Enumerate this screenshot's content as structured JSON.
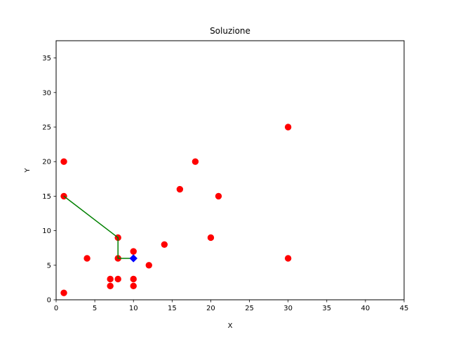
{
  "chart_data": {
    "type": "scatter",
    "title": "Soluzione",
    "xlabel": "X",
    "ylabel": "Y",
    "xlim": [
      0,
      45
    ],
    "ylim": [
      0,
      37.5
    ],
    "xticks": [
      0,
      5,
      10,
      15,
      20,
      25,
      30,
      35,
      40,
      45
    ],
    "yticks": [
      0,
      5,
      10,
      15,
      20,
      25,
      30,
      35
    ],
    "grid": false,
    "colors": {
      "points": "#ff0000",
      "path": "#008000",
      "start": "#0000ff",
      "axes": "#000000"
    },
    "series": [
      {
        "name": "points",
        "kind": "scatter",
        "marker": "circle",
        "x": [
          1,
          1,
          1,
          4,
          7,
          7,
          8,
          8,
          8,
          10,
          10,
          10,
          12,
          14,
          16,
          18,
          20,
          21,
          30,
          30
        ],
        "y": [
          20,
          15,
          1,
          6,
          3,
          2,
          9,
          6,
          3,
          7,
          3,
          2,
          5,
          8,
          16,
          20,
          9,
          15,
          25,
          6
        ]
      },
      {
        "name": "path",
        "kind": "line",
        "x": [
          10,
          8,
          8,
          1
        ],
        "y": [
          6,
          6,
          9,
          15
        ]
      },
      {
        "name": "start",
        "kind": "scatter",
        "marker": "diamond",
        "x": [
          10
        ],
        "y": [
          6
        ]
      }
    ]
  }
}
